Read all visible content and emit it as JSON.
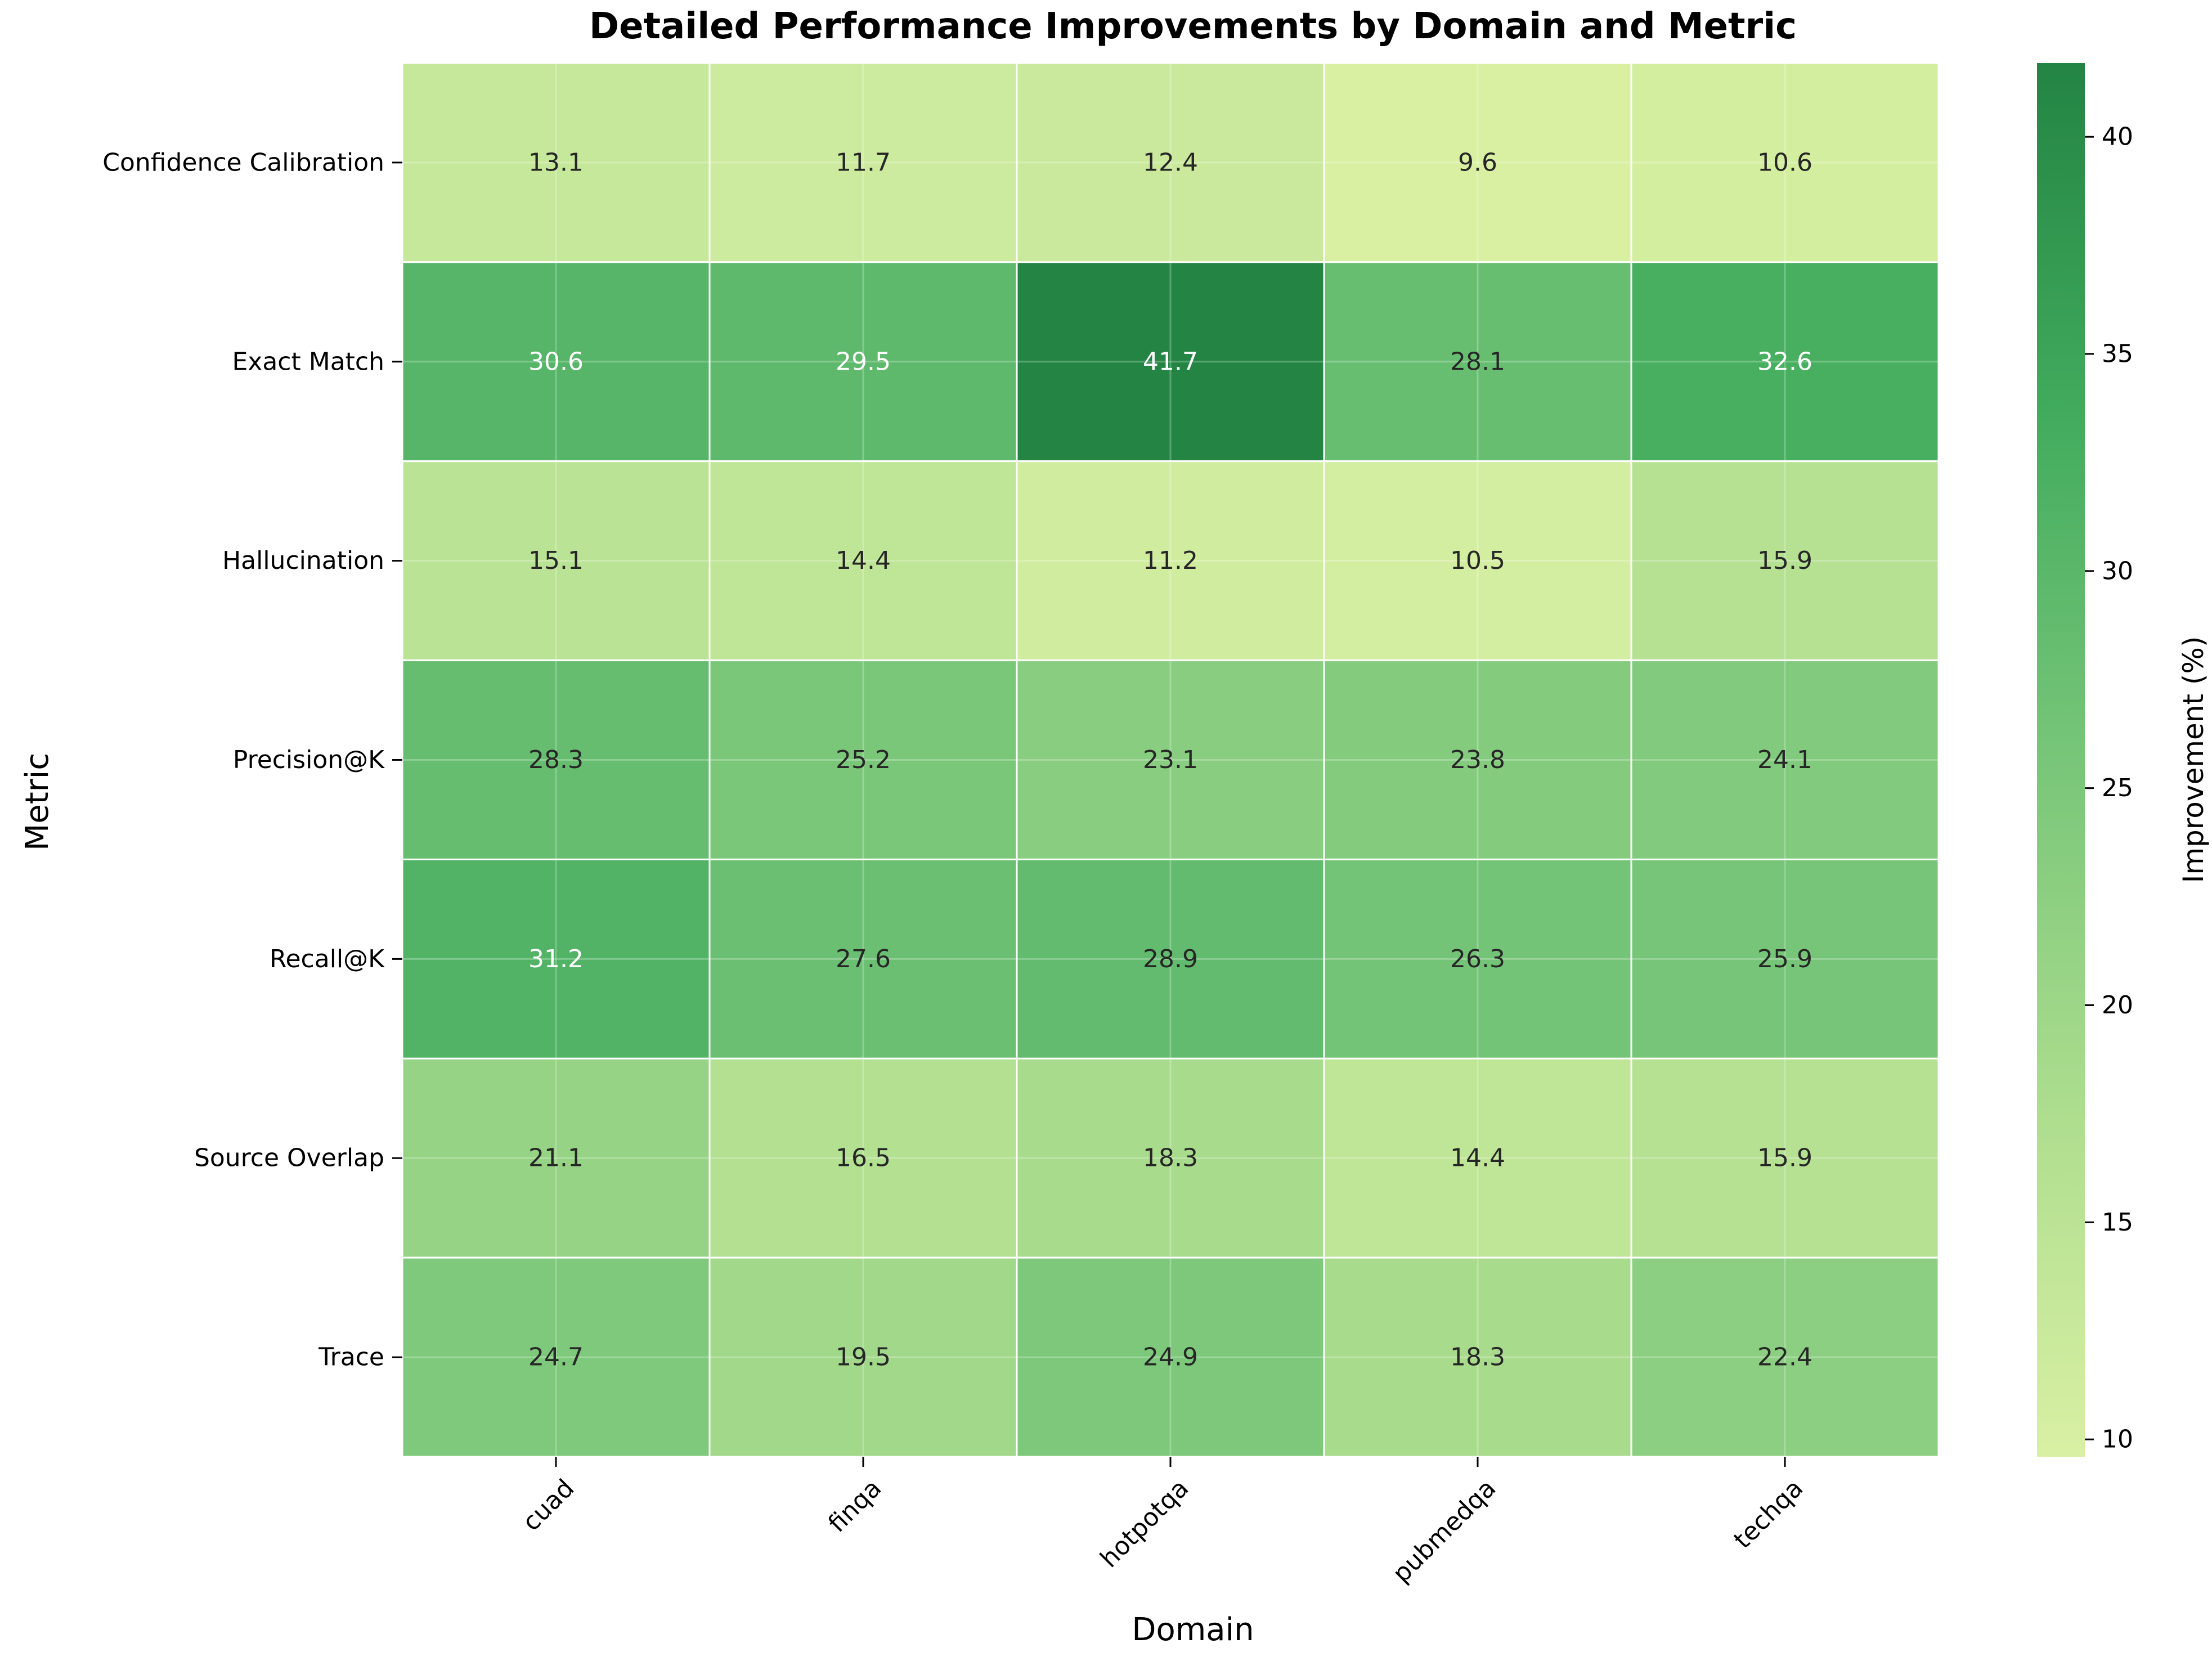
{
  "chart_data": {
    "type": "heatmap",
    "title": "Detailed Performance Improvements by Domain and Metric",
    "xlabel": "Domain",
    "ylabel": "Metric",
    "x": [
      "cuad",
      "finqa",
      "hotpotqa",
      "pubmedqa",
      "techqa"
    ],
    "y": [
      "Confidence Calibration",
      "Exact Match",
      "Hallucination",
      "Precision@K",
      "Recall@K",
      "Source Overlap",
      "Trace"
    ],
    "values": [
      [
        13.1,
        11.7,
        12.4,
        9.6,
        10.6
      ],
      [
        30.6,
        29.5,
        41.7,
        28.1,
        32.6
      ],
      [
        15.1,
        14.4,
        11.2,
        10.5,
        15.9
      ],
      [
        28.3,
        25.2,
        23.1,
        23.8,
        24.1
      ],
      [
        31.2,
        27.6,
        28.9,
        26.3,
        25.9
      ],
      [
        21.1,
        16.5,
        18.3,
        14.4,
        15.9
      ],
      [
        24.7,
        19.5,
        24.9,
        18.3,
        22.4
      ]
    ],
    "colorbar": {
      "label": "Improvement (%)",
      "min": 9.6,
      "max": 41.7,
      "ticks": [
        10,
        15,
        20,
        25,
        30,
        35,
        40
      ],
      "colormap": [
        "#d9f0a3",
        "#addd8e",
        "#78c679",
        "#41ab5d",
        "#238443"
      ]
    },
    "grid": true,
    "cell_border_color": "#ffffff"
  }
}
